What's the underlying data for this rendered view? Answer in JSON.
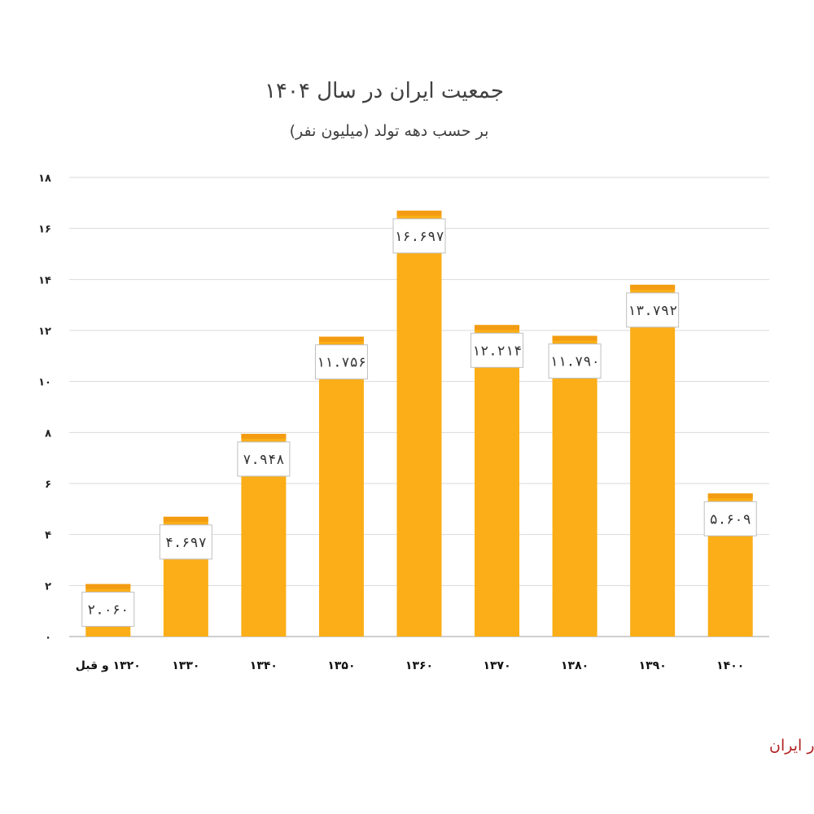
{
  "chart_data": {
    "type": "bar",
    "title": "جمعیت ایران در سال ۱۴۰۴",
    "subtitle": "بر حسب دهه تولد (میلیون نفر)",
    "categories": [
      "۱۳۲۰ و قبل",
      "۱۳۳۰",
      "۱۳۴۰",
      "۱۳۵۰",
      "۱۳۶۰",
      "۱۳۷۰",
      "۱۳۸۰",
      "۱۳۹۰",
      "۱۴۰۰"
    ],
    "values": [
      2.06,
      4.697,
      7.948,
      11.756,
      16.697,
      12.214,
      11.79,
      13.792,
      5.609
    ],
    "value_labels": [
      "۲.۰۶۰",
      "۴.۶۹۷",
      "۷.۹۴۸",
      "۱۱.۷۵۶",
      "۱۶.۶۹۷",
      "۱۲.۲۱۴",
      "۱۱.۷۹۰",
      "۱۳.۷۹۲",
      "۵.۶۰۹"
    ],
    "ylim": [
      0,
      18
    ],
    "yticks": [
      0,
      2,
      4,
      6,
      8,
      10,
      12,
      14,
      16,
      18
    ],
    "ytick_labels": [
      "۰",
      "۲",
      "۴",
      "۶",
      "۸",
      "۱۰",
      "۱۲",
      "۱۴",
      "۱۶",
      "۱۸"
    ],
    "grid": true,
    "legend": "none",
    "bar_color": "#FBAE17",
    "bar_top_color": "#F39C12"
  },
  "source": "منبع: مرکز آمار ایران"
}
